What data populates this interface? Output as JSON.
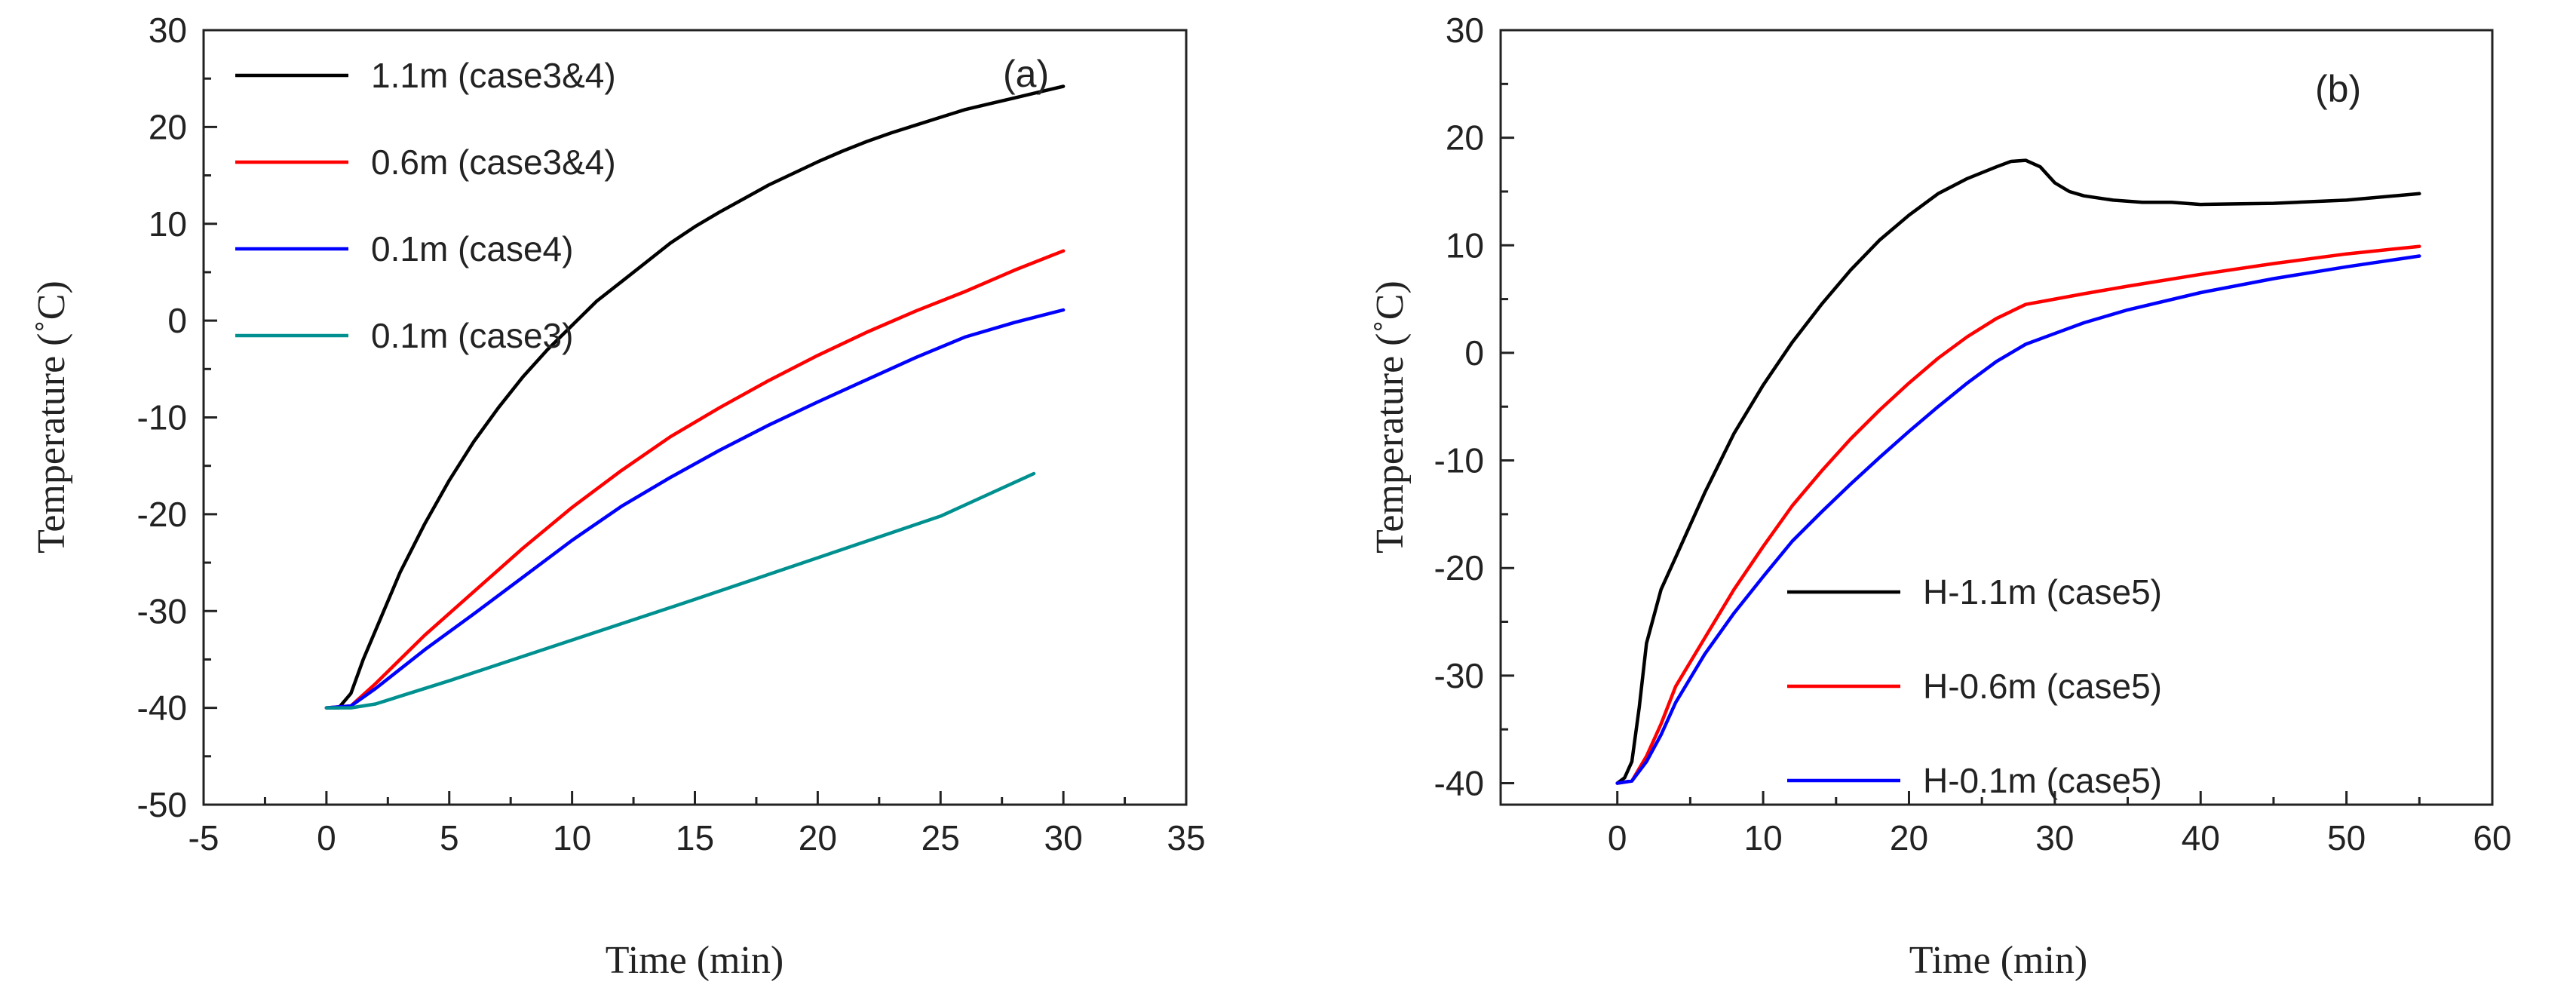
{
  "chart_data": [
    {
      "type": "line",
      "panel_label": "(a)",
      "xlabel": "Time (min)",
      "ylabel": "Temperature (˚C)",
      "xlim": [
        -5,
        35
      ],
      "ylim": [
        -50,
        30
      ],
      "xticks": [
        -5,
        0,
        5,
        10,
        15,
        20,
        25,
        30,
        35
      ],
      "yticks": [
        -50,
        -40,
        -30,
        -20,
        -10,
        0,
        10,
        20,
        30
      ],
      "legend_position": "top-left",
      "series": [
        {
          "name": "1.1m (case3&4)",
          "color": "#000000",
          "x": [
            0,
            0.5,
            1,
            1.5,
            2,
            3,
            4,
            5,
            6,
            7,
            8,
            9,
            10,
            11,
            12,
            13,
            14,
            15,
            16,
            17,
            18,
            19,
            20,
            21,
            22,
            23,
            24,
            25,
            26,
            27,
            28,
            29,
            30
          ],
          "y": [
            -40,
            -40,
            -38.5,
            -35,
            -32,
            -26,
            -21,
            -16.5,
            -12.5,
            -9,
            -5.8,
            -3,
            -0.5,
            2,
            4,
            6,
            8,
            9.7,
            11.2,
            12.6,
            14,
            15.2,
            16.4,
            17.5,
            18.5,
            19.4,
            20.2,
            21,
            21.8,
            22.4,
            23,
            23.6,
            24.2
          ]
        },
        {
          "name": "0.6m (case3&4)",
          "color": "#ff0000",
          "x": [
            0,
            1,
            2,
            3,
            4,
            6,
            8,
            10,
            12,
            14,
            16,
            18,
            20,
            22,
            24,
            26,
            28,
            30
          ],
          "y": [
            -40,
            -39.8,
            -37.5,
            -35,
            -32.5,
            -28,
            -23.5,
            -19.3,
            -15.5,
            -12,
            -9,
            -6.2,
            -3.6,
            -1.2,
            1,
            3,
            5.2,
            7.2
          ]
        },
        {
          "name": "0.1m (case4)",
          "color": "#0000ff",
          "x": [
            0,
            1,
            2,
            3,
            4,
            6,
            8,
            10,
            12,
            14,
            16,
            18,
            20,
            22,
            24,
            26,
            28,
            30
          ],
          "y": [
            -40,
            -39.8,
            -38,
            -36,
            -34,
            -30.3,
            -26.5,
            -22.7,
            -19.2,
            -16.2,
            -13.4,
            -10.8,
            -8.4,
            -6.1,
            -3.8,
            -1.7,
            -0.2,
            1.1
          ]
        },
        {
          "name": "0.1m (case3)",
          "color": "#009090",
          "x": [
            0,
            1,
            2,
            3,
            5,
            10,
            15,
            20,
            25,
            28.8
          ],
          "y": [
            -40,
            -40,
            -39.6,
            -38.8,
            -37.2,
            -33,
            -28.8,
            -24.5,
            -20.2,
            -15.8
          ]
        }
      ]
    },
    {
      "type": "line",
      "panel_label": "(b)",
      "xlabel": "Time (min)",
      "ylabel": "Temperature (˚C)",
      "xlim": [
        -8,
        60
      ],
      "ylim": [
        -42,
        30
      ],
      "xticks": [
        0,
        10,
        20,
        30,
        40,
        50,
        60
      ],
      "yticks": [
        -40,
        -30,
        -20,
        -10,
        0,
        10,
        20,
        30
      ],
      "legend_position": "bottom-right",
      "series": [
        {
          "name": "H-1.1m (case5)",
          "color": "#000000",
          "x": [
            0,
            0.5,
            1,
            1.5,
            2,
            3,
            4,
            5,
            6,
            8,
            10,
            12,
            14,
            16,
            18,
            20,
            22,
            24,
            26,
            27,
            28,
            29,
            30,
            31,
            32,
            34,
            36,
            38,
            40,
            45,
            50,
            55
          ],
          "y": [
            -40,
            -39.5,
            -38,
            -33,
            -27,
            -22,
            -19,
            -16,
            -13,
            -7.5,
            -3,
            1,
            4.5,
            7.7,
            10.5,
            12.8,
            14.8,
            16.2,
            17.3,
            17.8,
            17.9,
            17.3,
            15.8,
            15,
            14.6,
            14.2,
            14,
            14,
            13.8,
            13.9,
            14.2,
            14.8
          ]
        },
        {
          "name": "H-0.6m (case5)",
          "color": "#ff0000",
          "x": [
            0,
            1,
            2,
            3,
            4,
            6,
            8,
            10,
            12,
            14,
            16,
            18,
            20,
            22,
            24,
            26,
            28,
            30,
            32,
            35,
            40,
            45,
            50,
            55
          ],
          "y": [
            -40,
            -39.8,
            -37.5,
            -34.5,
            -31,
            -26.5,
            -22,
            -18,
            -14.2,
            -11,
            -8,
            -5.3,
            -2.8,
            -0.5,
            1.5,
            3.2,
            4.5,
            5,
            5.5,
            6.2,
            7.3,
            8.3,
            9.2,
            9.9
          ]
        },
        {
          "name": "H-0.1m (case5)",
          "color": "#0000ff",
          "x": [
            0,
            1,
            2,
            3,
            4,
            6,
            8,
            10,
            12,
            14,
            16,
            18,
            20,
            22,
            24,
            26,
            28,
            30,
            32,
            35,
            40,
            45,
            50,
            55
          ],
          "y": [
            -40,
            -39.8,
            -38,
            -35.5,
            -32.5,
            -28,
            -24.2,
            -20.8,
            -17.5,
            -14.8,
            -12.2,
            -9.7,
            -7.3,
            -5,
            -2.8,
            -0.8,
            0.8,
            1.8,
            2.8,
            4,
            5.6,
            6.9,
            8,
            9
          ]
        }
      ]
    }
  ]
}
